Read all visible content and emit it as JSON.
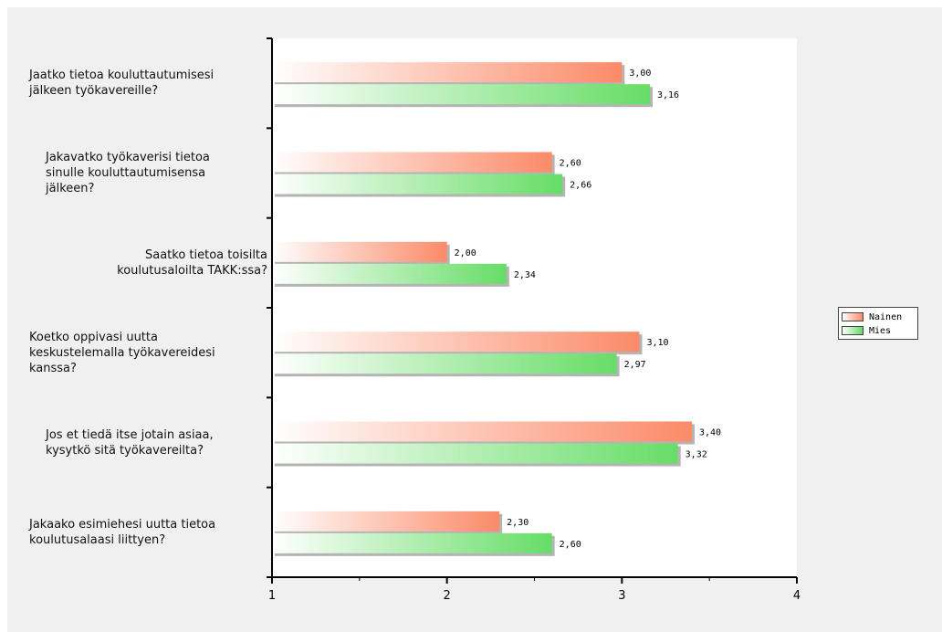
{
  "chart_data": {
    "type": "bar",
    "orientation": "horizontal",
    "title": "",
    "xlabel": "",
    "ylabel": "",
    "xlim": [
      1,
      4
    ],
    "ticks": [
      "1",
      "2",
      "3",
      "4"
    ],
    "grid": false,
    "legend_position": "right",
    "categories": [
      "Jaatko tietoa kouluttautumisesi\njälkeen työkavereille?",
      "Jakavatko työkaverisi tietoa\nsinulle kouluttautumisensa\njälkeen?",
      "Saatko tietoa toisilta\nkoulutusaloilta TAKK:ssa?",
      "Koetko oppivasi uutta\nkeskustelemalla työkavereidesi\nkanssa?",
      "Jos et tiedä itse jotain asiaa,\nkysytkö sitä työkavereilta?",
      "Jakaako esimiehesi uutta tietoa\nkoulutusalaasi liittyen?"
    ],
    "category_align": [
      "left",
      "center",
      "right",
      "left",
      "center",
      "left"
    ],
    "series": [
      {
        "name": "Nainen",
        "color": "#fb8a68",
        "values": [
          3.0,
          2.6,
          2.0,
          3.1,
          3.4,
          2.3
        ],
        "labels": [
          "3,00",
          "2,60",
          "2,00",
          "3,10",
          "3,40",
          "2,30"
        ]
      },
      {
        "name": "Mies",
        "color": "#66dd66",
        "values": [
          3.16,
          2.66,
          2.34,
          2.97,
          3.32,
          2.6
        ],
        "labels": [
          "3,16",
          "2,66",
          "2,34",
          "2,97",
          "3,32",
          "2,60"
        ]
      }
    ]
  }
}
